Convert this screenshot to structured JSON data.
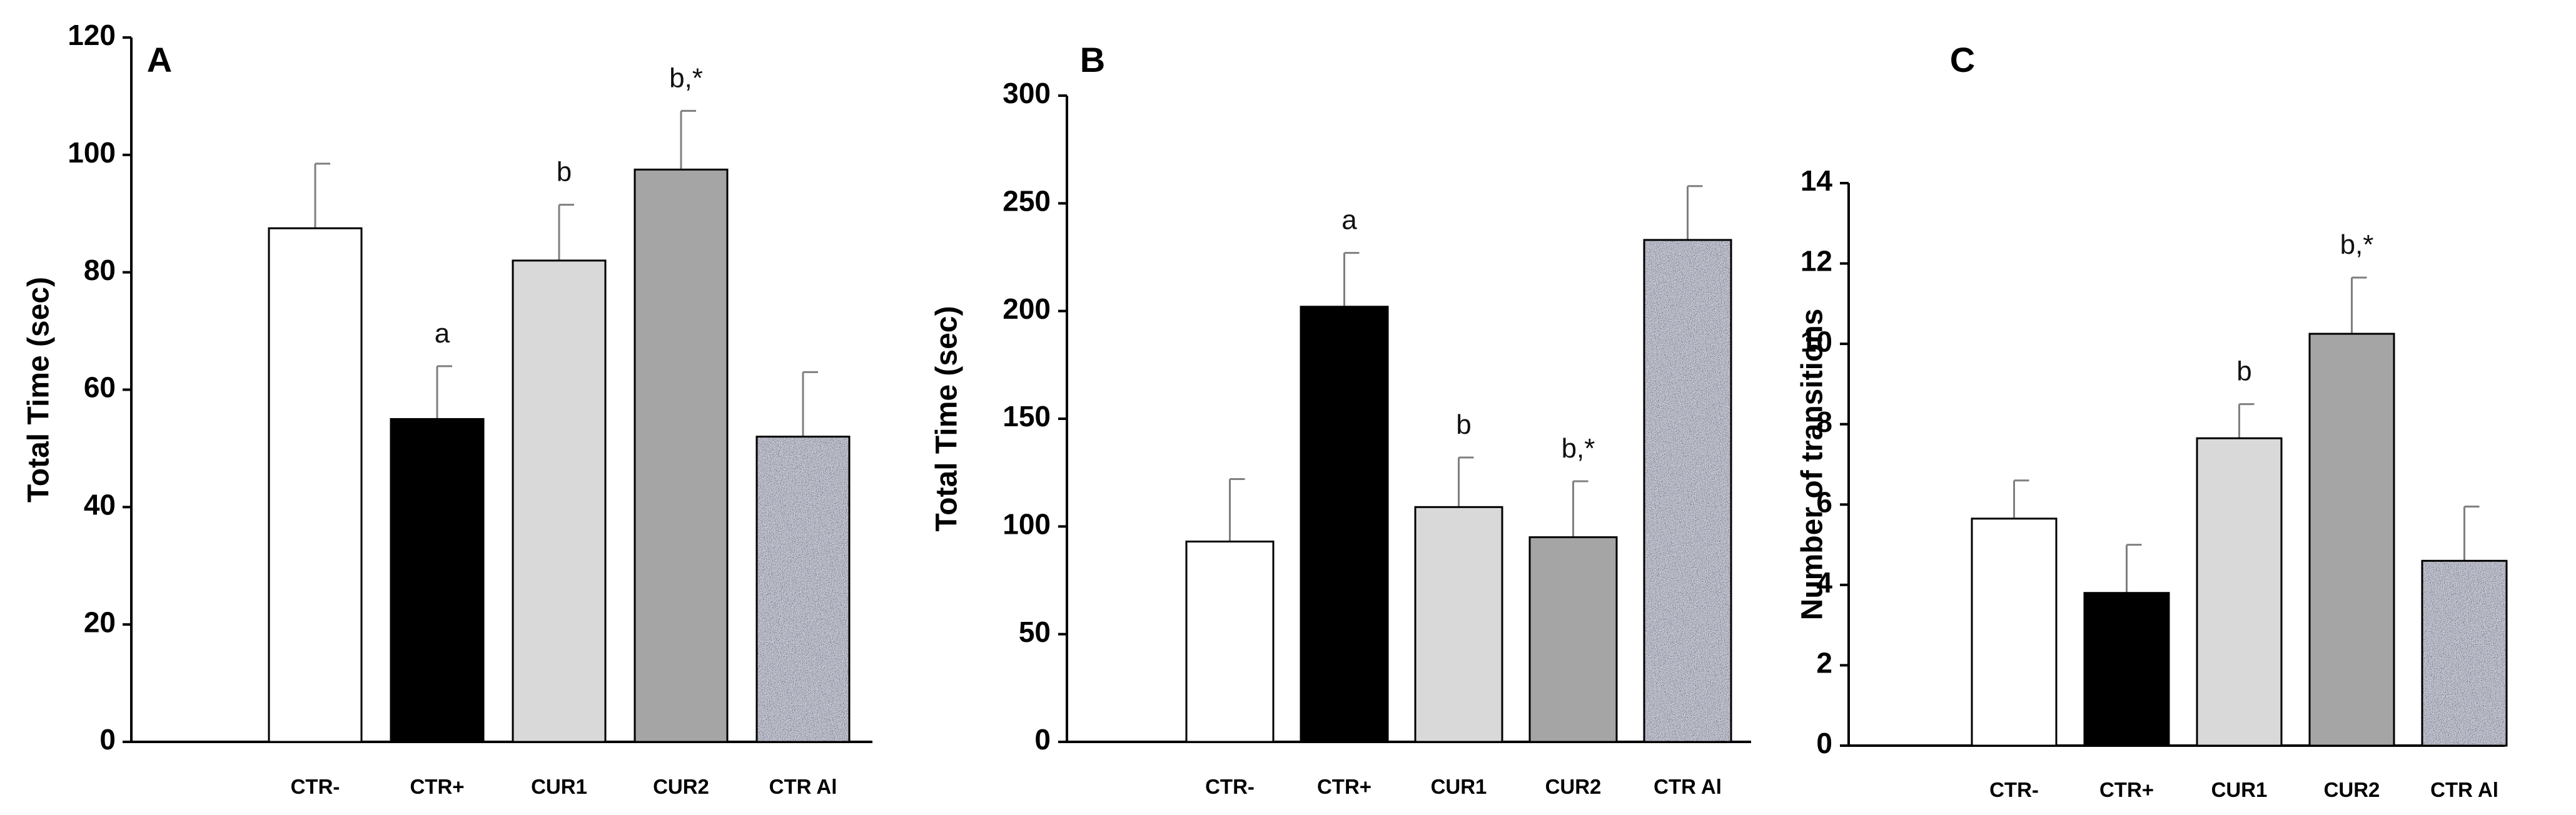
{
  "chart_data": [
    {
      "type": "bar",
      "panel": "A",
      "ylabel": "Total Time (sec)",
      "xlabel": "",
      "ylim": [
        0,
        120
      ],
      "yticks": [
        0,
        20,
        40,
        60,
        80,
        100,
        120
      ],
      "categories": [
        "CTR-",
        "CTR+",
        "CUR1",
        "CUR2",
        "CTR Al"
      ],
      "values": [
        87.5,
        55,
        82,
        97.5,
        52
      ],
      "errors": [
        11,
        9,
        9.5,
        10,
        11
      ],
      "annotations": [
        "",
        "a",
        "b",
        "b,*",
        ""
      ],
      "fills": [
        "white",
        "black",
        "lightgray",
        "gray",
        "speckled"
      ]
    },
    {
      "type": "bar",
      "panel": "B",
      "ylabel": "Total Time (sec)",
      "xlabel": "",
      "ylim": [
        0,
        300
      ],
      "yticks": [
        0,
        50,
        100,
        150,
        200,
        250,
        300
      ],
      "categories": [
        "CTR-",
        "CTR+",
        "CUR1",
        "CUR2",
        "CTR Al"
      ],
      "values": [
        93,
        202,
        109,
        95,
        233
      ],
      "errors": [
        29,
        25,
        23,
        26,
        25
      ],
      "annotations": [
        "",
        "a",
        "b",
        "b,*",
        ""
      ],
      "fills": [
        "white",
        "black",
        "lightgray",
        "gray",
        "speckled"
      ]
    },
    {
      "type": "bar",
      "panel": "C",
      "ylabel": "Number of transitions",
      "xlabel": "",
      "ylim": [
        0,
        14
      ],
      "yticks": [
        0,
        2,
        4,
        6,
        8,
        10,
        12,
        14
      ],
      "categories": [
        "CTR-",
        "CTR+",
        "CUR1",
        "CUR2",
        "CTR Al"
      ],
      "values": [
        5.65,
        3.8,
        7.65,
        10.25,
        4.6
      ],
      "errors": [
        0.95,
        1.2,
        0.85,
        1.4,
        1.35
      ],
      "annotations": [
        "",
        "",
        "b",
        "b,*",
        ""
      ],
      "fills": [
        "white",
        "black",
        "lightgray",
        "gray",
        "speckled"
      ]
    }
  ],
  "colors": {
    "white": "#ffffff",
    "black": "#000000",
    "lightgray": "#d9d9d9",
    "gray": "#a5a5a5",
    "stroke": "#000000",
    "speckle_base": "#b4b8bf",
    "speckle_dark": "#3e4350",
    "speckle_light": "#ffffff"
  }
}
